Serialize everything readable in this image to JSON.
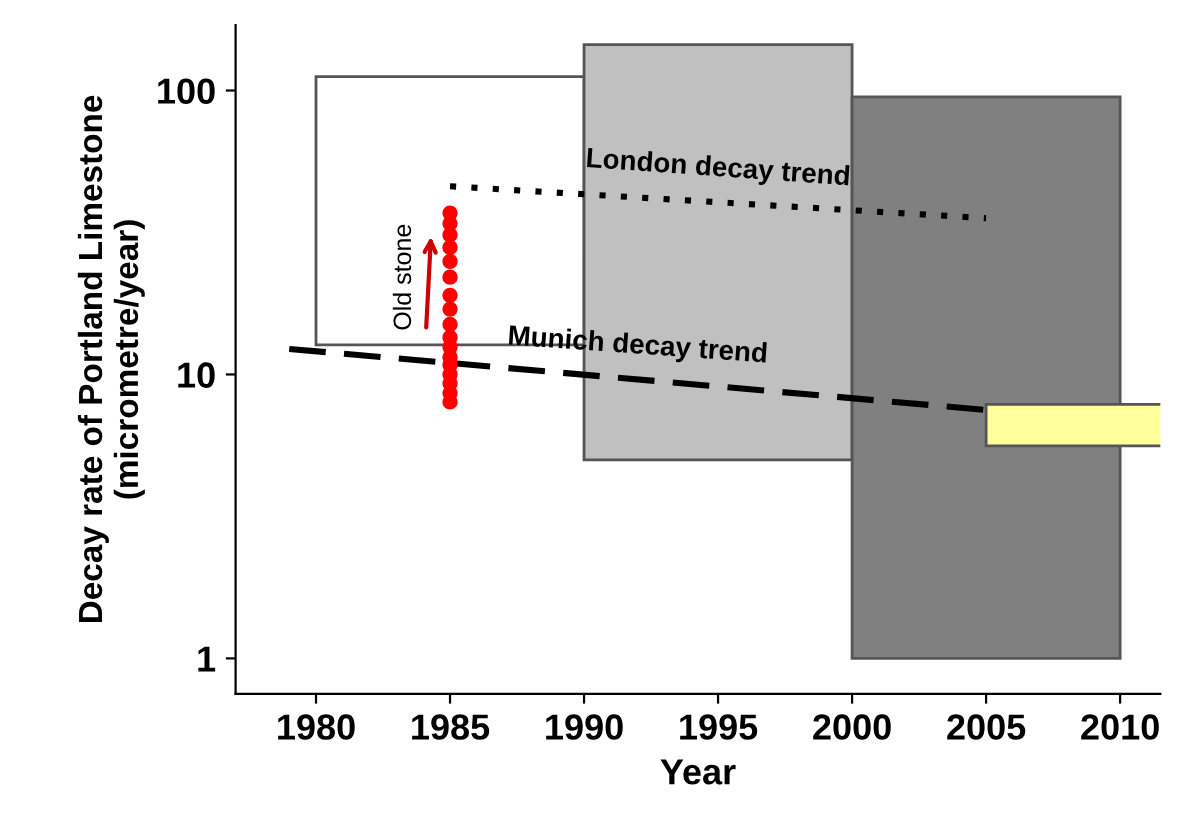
{
  "chart_data": {
    "type": "bar",
    "xlabel": "Year",
    "ylabel": "Decay rate of Portland Limestone\n(micrometre/year)",
    "log": "y",
    "xlim": [
      1977,
      2011.5
    ],
    "ylim": [
      0.75,
      170
    ],
    "xticks": [
      1980,
      1985,
      1990,
      1995,
      2000,
      2005,
      2010
    ],
    "yticks": [
      1,
      10,
      100
    ],
    "grid": false,
    "legend": false,
    "series": [
      {
        "colors": [
          "#ffffff",
          "#c0c0c0",
          "#808080",
          "#ffff99"
        ],
        "x": [
          1985,
          1995,
          2005,
          2010
        ],
        "base": [
          12.7,
          5,
          1,
          5.6
        ],
        "values": [
          99.3,
          140,
          94,
          2.25
        ]
      },
      {
        "type": "line",
        "name": "London decay trend",
        "color": "#000000",
        "line_style": "dotted",
        "x": [
          1985,
          2005
        ],
        "values": [
          46,
          35.5
        ]
      },
      {
        "type": "line",
        "name": "Munich decay trend",
        "color": "#000000",
        "line_style": "dashed",
        "x": [
          1979,
          2005
        ],
        "values": [
          12.3,
          7.5
        ]
      },
      {
        "type": "scatter",
        "color": "#ff0000",
        "x": [
          1985,
          1985,
          1985,
          1985,
          1985,
          1985,
          1985,
          1985,
          1985,
          1985,
          1985,
          1985,
          1985,
          1985,
          1985,
          1985,
          1985
        ],
        "values": [
          37,
          34,
          31,
          28,
          25,
          22,
          19,
          17,
          15,
          13.5,
          12.5,
          11.5,
          10.8,
          10,
          9.3,
          8.6,
          8
        ]
      }
    ],
    "annotations": [
      "Old stone"
    ]
  }
}
